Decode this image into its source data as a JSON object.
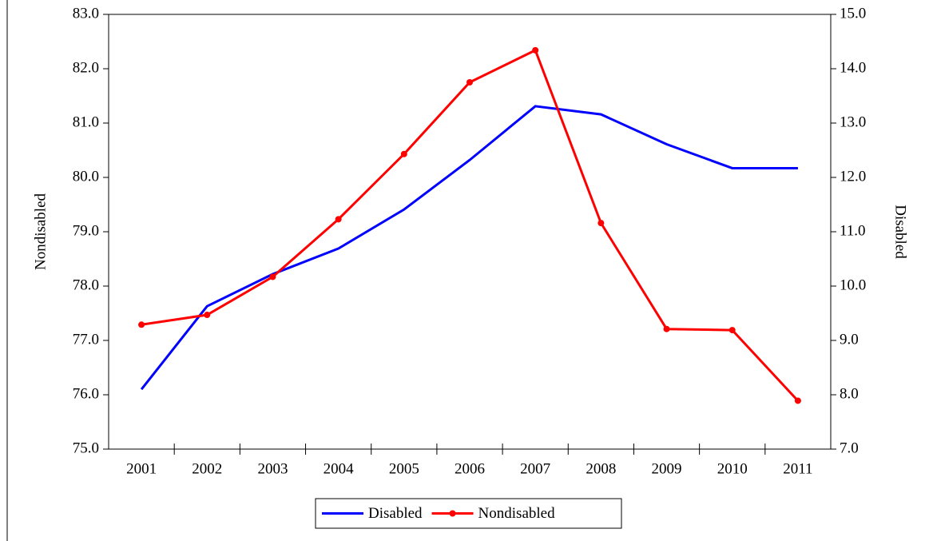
{
  "chart_data": {
    "type": "line",
    "categories": [
      "2001",
      "2002",
      "2003",
      "2004",
      "2005",
      "2006",
      "2007",
      "2008",
      "2009",
      "2010",
      "2011"
    ],
    "series": [
      {
        "name": "Disabled",
        "color": "#0000ff",
        "axis": "y2",
        "markers": false,
        "values": [
          8.1,
          9.63,
          10.22,
          10.69,
          11.41,
          12.32,
          13.31,
          13.16,
          12.61,
          12.17,
          12.17
        ]
      },
      {
        "name": "Nondisabled",
        "color": "#ff0000",
        "markers": true,
        "values": [
          77.29,
          77.47,
          78.17,
          79.23,
          80.43,
          81.75,
          82.34,
          79.16,
          77.21,
          77.19,
          75.89
        ]
      }
    ],
    "ylabel": "Nondisabled",
    "y2label": "Disabled",
    "ylim": [
      75,
      83
    ],
    "yticks": [
      {
        "value": 75,
        "label": "75.0"
      },
      {
        "value": 76,
        "label": "76.0"
      },
      {
        "value": 77,
        "label": "77.0"
      },
      {
        "value": 78,
        "label": "78.0"
      },
      {
        "value": 79,
        "label": "79.0"
      },
      {
        "value": 80,
        "label": "80.0"
      },
      {
        "value": 81,
        "label": "81.0"
      },
      {
        "value": 82,
        "label": "82.0"
      },
      {
        "value": 83,
        "label": "83.0"
      }
    ],
    "y2lim": [
      7,
      15
    ],
    "y2ticks": [
      {
        "value": 7,
        "label": "7.0"
      },
      {
        "value": 8,
        "label": "8.0"
      },
      {
        "value": 9,
        "label": "9.0"
      },
      {
        "value": 10,
        "label": "10.0"
      },
      {
        "value": 11,
        "label": "11.0"
      },
      {
        "value": 12,
        "label": "12.0"
      },
      {
        "value": 13,
        "label": "13.0"
      },
      {
        "value": 14,
        "label": "14.0"
      },
      {
        "value": 15,
        "label": "15.0"
      }
    ],
    "legend": "bottom"
  }
}
